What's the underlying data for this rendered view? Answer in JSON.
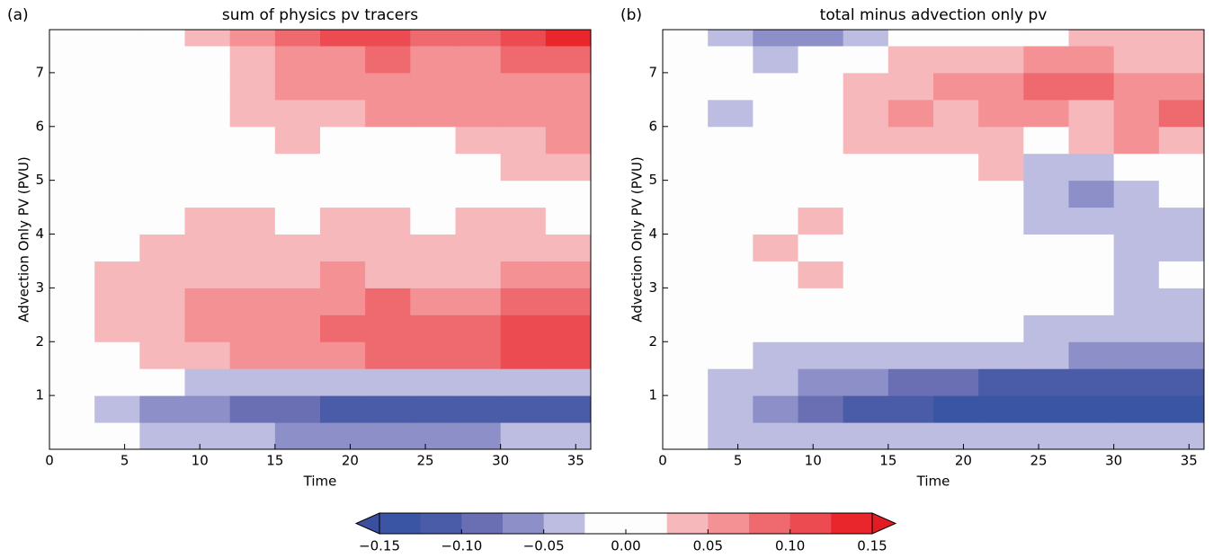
{
  "chart_data": [
    {
      "type": "contourf",
      "label": "(a)",
      "title": "sum of physics pv tracers",
      "xlabel": "Time",
      "ylabel": "Advection Only PV (PVU)",
      "xlim": [
        0,
        36
      ],
      "ylim": [
        0,
        7.8
      ],
      "xticks": [
        0,
        5,
        10,
        15,
        20,
        25,
        30,
        35
      ],
      "yticks": [
        1,
        2,
        3,
        4,
        5,
        6,
        7
      ],
      "x": [
        1.5,
        4.5,
        7.5,
        10.5,
        13.5,
        16.5,
        19.5,
        22.5,
        25.5,
        28.5,
        31.5,
        34.5
      ],
      "y": [
        0.25,
        0.75,
        1.25,
        1.75,
        2.25,
        2.75,
        3.25,
        3.75,
        4.25,
        4.75,
        5.25,
        5.75,
        6.25,
        6.75,
        7.25,
        7.75
      ],
      "z": [
        [
          0,
          0,
          -0.04,
          -0.04,
          -0.04,
          -0.06,
          -0.06,
          -0.06,
          -0.06,
          -0.06,
          -0.04,
          -0.04
        ],
        [
          0,
          -0.04,
          -0.06,
          -0.06,
          -0.09,
          -0.09,
          -0.11,
          -0.11,
          -0.11,
          -0.11,
          -0.11,
          -0.11
        ],
        [
          0,
          0,
          0,
          -0.04,
          -0.04,
          -0.04,
          -0.04,
          -0.04,
          -0.04,
          -0.04,
          -0.04,
          -0.04
        ],
        [
          0,
          0,
          0.04,
          0.04,
          0.06,
          0.06,
          0.06,
          0.09,
          0.09,
          0.09,
          0.11,
          0.11
        ],
        [
          0,
          0.04,
          0.04,
          0.06,
          0.06,
          0.06,
          0.09,
          0.09,
          0.09,
          0.09,
          0.11,
          0.11
        ],
        [
          0,
          0.04,
          0.04,
          0.06,
          0.06,
          0.06,
          0.06,
          0.09,
          0.06,
          0.06,
          0.09,
          0.09
        ],
        [
          0,
          0.04,
          0.04,
          0.04,
          0.04,
          0.04,
          0.06,
          0.04,
          0.04,
          0.04,
          0.06,
          0.06
        ],
        [
          0,
          0,
          0.04,
          0.04,
          0.04,
          0.04,
          0.04,
          0.04,
          0.04,
          0.04,
          0.04,
          0.04
        ],
        [
          0,
          0,
          0,
          0.04,
          0.04,
          0,
          0.04,
          0.04,
          0,
          0.04,
          0.04,
          0
        ],
        [
          0,
          0,
          0,
          0,
          0,
          0,
          0,
          0,
          0,
          0,
          0,
          0
        ],
        [
          0,
          0,
          0,
          0,
          0,
          0,
          0,
          0,
          0,
          0,
          0.04,
          0.04
        ],
        [
          0,
          0,
          0,
          0,
          0,
          0.04,
          0,
          0,
          0,
          0.04,
          0.04,
          0.06
        ],
        [
          0,
          0,
          0,
          0,
          0.04,
          0.04,
          0.04,
          0.06,
          0.06,
          0.06,
          0.06,
          0.06
        ],
        [
          0,
          0,
          0,
          0,
          0.04,
          0.06,
          0.06,
          0.06,
          0.06,
          0.06,
          0.06,
          0.06
        ],
        [
          0,
          0,
          0,
          0,
          0.04,
          0.06,
          0.06,
          0.09,
          0.06,
          0.06,
          0.09,
          0.09
        ],
        [
          0,
          0,
          0,
          0.04,
          0.06,
          0.09,
          0.11,
          0.11,
          0.09,
          0.09,
          0.11,
          0.14
        ]
      ]
    },
    {
      "type": "contourf",
      "label": "(b)",
      "title": "total minus advection only pv",
      "xlabel": "Time",
      "ylabel": "Advection Only PV (PVU)",
      "xlim": [
        0,
        36
      ],
      "ylim": [
        0,
        7.8
      ],
      "xticks": [
        0,
        5,
        10,
        15,
        20,
        25,
        30,
        35
      ],
      "yticks": [
        1,
        2,
        3,
        4,
        5,
        6,
        7
      ],
      "x": [
        1.5,
        4.5,
        7.5,
        10.5,
        13.5,
        16.5,
        19.5,
        22.5,
        25.5,
        28.5,
        31.5,
        34.5
      ],
      "y": [
        0.25,
        0.75,
        1.25,
        1.75,
        2.25,
        2.75,
        3.25,
        3.75,
        4.25,
        4.75,
        5.25,
        5.75,
        6.25,
        6.75,
        7.25,
        7.75
      ],
      "z": [
        [
          0,
          -0.04,
          -0.04,
          -0.04,
          -0.04,
          -0.04,
          -0.04,
          -0.04,
          -0.04,
          -0.04,
          -0.04,
          -0.04
        ],
        [
          0,
          -0.04,
          -0.06,
          -0.09,
          -0.11,
          -0.11,
          -0.14,
          -0.14,
          -0.14,
          -0.14,
          -0.14,
          -0.14
        ],
        [
          0,
          -0.04,
          -0.04,
          -0.06,
          -0.06,
          -0.09,
          -0.09,
          -0.11,
          -0.11,
          -0.11,
          -0.11,
          -0.11
        ],
        [
          0,
          0,
          -0.04,
          -0.04,
          -0.04,
          -0.04,
          -0.04,
          -0.04,
          -0.04,
          -0.06,
          -0.06,
          -0.06
        ],
        [
          0,
          0,
          0,
          0,
          0,
          0,
          0,
          0,
          -0.04,
          -0.04,
          -0.04,
          -0.04
        ],
        [
          0,
          0,
          0,
          0,
          0,
          0,
          0,
          0,
          0,
          0,
          -0.04,
          -0.04
        ],
        [
          0,
          0,
          0,
          0.04,
          0,
          0,
          0,
          0,
          0,
          0,
          -0.04,
          0
        ],
        [
          0,
          0,
          0.04,
          0,
          0,
          0,
          0,
          0,
          0,
          0,
          -0.04,
          -0.04
        ],
        [
          0,
          0,
          0,
          0.04,
          0,
          0,
          0,
          0,
          -0.04,
          -0.04,
          -0.04,
          -0.04
        ],
        [
          0,
          0,
          0,
          0,
          0,
          0,
          0,
          0,
          -0.04,
          -0.06,
          -0.04,
          0
        ],
        [
          0,
          0,
          0,
          0,
          0,
          0,
          0,
          0.04,
          -0.04,
          -0.04,
          0,
          0
        ],
        [
          0,
          0,
          0,
          0,
          0.04,
          0.04,
          0.04,
          0.04,
          0,
          0.04,
          0.06,
          0.04
        ],
        [
          0,
          -0.04,
          0,
          0,
          0.04,
          0.06,
          0.04,
          0.06,
          0.06,
          0.04,
          0.06,
          0.09
        ],
        [
          0,
          0,
          0,
          0,
          0.04,
          0.04,
          0.06,
          0.06,
          0.09,
          0.09,
          0.06,
          0.06
        ],
        [
          0,
          0,
          -0.04,
          0,
          0,
          0.04,
          0.04,
          0.04,
          0.06,
          0.06,
          0.04,
          0.04
        ],
        [
          0,
          -0.04,
          -0.06,
          -0.06,
          -0.04,
          0,
          0,
          0,
          0,
          0.04,
          0.04,
          0.04
        ]
      ]
    }
  ],
  "colorbar": {
    "levels": [
      -0.15,
      -0.125,
      -0.1,
      -0.075,
      -0.05,
      -0.025,
      0,
      0.025,
      0.05,
      0.075,
      0.1,
      0.125,
      0.15
    ],
    "colors": [
      "#3b55a5",
      "#4a5ba8",
      "#6a6fb3",
      "#8c8fc8",
      "#bcbde0",
      "#fdfdfd",
      "#fdfdfd",
      "#f6b8bb",
      "#f39195",
      "#ef6a6f",
      "#ec4b51",
      "#e8262c"
    ],
    "under_color": "#3a4f9f",
    "over_color": "#e31b23",
    "ticks": [
      {
        "value": -0.15,
        "label": "−0.15"
      },
      {
        "value": -0.1,
        "label": "−0.10"
      },
      {
        "value": -0.05,
        "label": "−0.05"
      },
      {
        "value": 0,
        "label": "0.00"
      },
      {
        "value": 0.05,
        "label": "0.05"
      },
      {
        "value": 0.1,
        "label": "0.10"
      },
      {
        "value": 0.15,
        "label": "0.15"
      }
    ]
  }
}
